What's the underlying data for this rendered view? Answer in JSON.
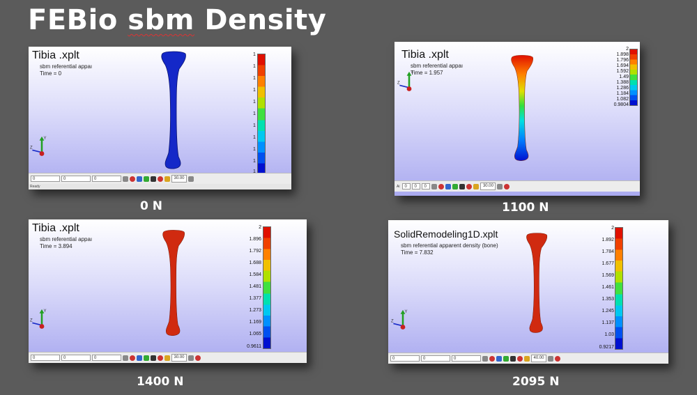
{
  "slide": {
    "title_a": "FEBio ",
    "title_b": "sbm",
    "title_c": " Density"
  },
  "panels": [
    {
      "file_title": "Tibia .xplt",
      "field": "sbm referential appaı",
      "time": "Time = 0",
      "ticks": [
        "1",
        "1",
        "1",
        "1",
        "1",
        "1",
        "1",
        "1",
        "1",
        "1",
        "1"
      ],
      "caption": "0 N",
      "zoom": "30.00",
      "inputs": [
        "0",
        "0",
        "0"
      ],
      "status_label": "Ready"
    },
    {
      "file_title": "Tibia .xplt",
      "field": "sbm referential appaı",
      "time": "Time = 1.957",
      "ticks": [
        "2",
        "1.898",
        "1.796",
        "1.694",
        "1.592",
        "1.49",
        "1.388",
        "1.286",
        "1.184",
        "1.082",
        "0.9804"
      ],
      "caption": "1100 N",
      "zoom": "30.00",
      "inputs": [
        "0",
        "0",
        "0"
      ],
      "axis_label": "Ai"
    },
    {
      "file_title": "Tibia .xplt",
      "field": "sbm referential appaı",
      "time": "Time = 3.894",
      "ticks": [
        "2",
        "1.896",
        "1.792",
        "1.688",
        "1.584",
        "1.481",
        "1.377",
        "1.273",
        "1.169",
        "1.065",
        "0.9611"
      ],
      "caption": "1400 N",
      "zoom": "30.00",
      "inputs": [
        "0",
        "0",
        "0"
      ]
    },
    {
      "file_title": "SolidRemodeling1D.xplt",
      "field": "sbm referential apparent density (bone)",
      "time": "Time = 7.832",
      "ticks": [
        "2",
        "1.892",
        "1.784",
        "1.677",
        "1.569",
        "1.461",
        "1.353",
        "1.245",
        "1.137",
        "1.03",
        "0.9217"
      ],
      "caption": "2095 N",
      "zoom": "40.00",
      "inputs": [
        "0",
        "0",
        "0"
      ]
    }
  ],
  "colors": {
    "background": "#5b5b5b",
    "bone_low": "#1428c8",
    "bone_high": "#d02a10"
  }
}
